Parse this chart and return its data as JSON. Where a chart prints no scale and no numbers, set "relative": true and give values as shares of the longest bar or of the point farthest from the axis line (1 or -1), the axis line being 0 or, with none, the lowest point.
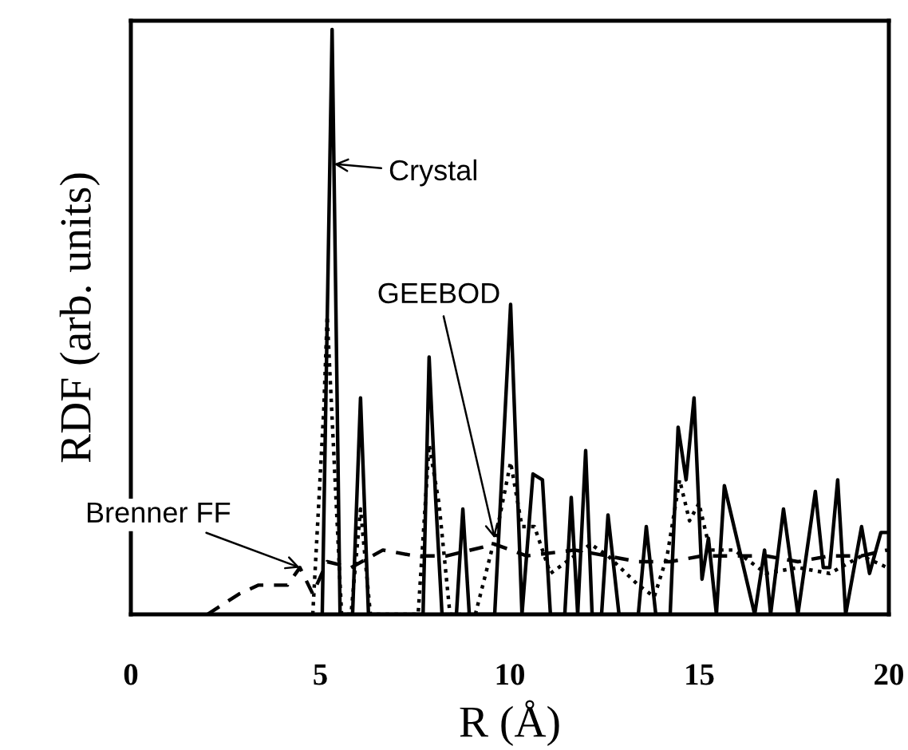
{
  "chart_data": {
    "type": "line",
    "relative": true,
    "xlabel": "R (Å)",
    "ylabel": "RDF (arb. units)",
    "xlim": [
      0,
      20
    ],
    "xticks": [
      0,
      5,
      10,
      15,
      20
    ],
    "grid": false,
    "marker": "none",
    "series": [
      {
        "color": "#000000",
        "line_style": "solid",
        "x": [
          5.05,
          5.31,
          5.52,
          5.85,
          6.06,
          6.27,
          7.71,
          7.87,
          8.04,
          8.21,
          8.59,
          8.76,
          8.93,
          9.6,
          10.02,
          10.32,
          10.61,
          10.86,
          11.07,
          11.45,
          11.62,
          11.79,
          12.0,
          12.17,
          12.42,
          12.59,
          12.88,
          13.39,
          13.6,
          13.85,
          14.23,
          14.44,
          14.65,
          14.86,
          15.07,
          15.24,
          15.45,
          15.66,
          16.46,
          16.72,
          16.88,
          17.22,
          17.6,
          18.06,
          18.27,
          18.44,
          18.65,
          18.86,
          19.28,
          19.49,
          19.79,
          19.96
        ],
        "values": [
          0,
          1.0,
          0,
          0,
          0.37,
          0,
          0,
          0.44,
          0.2,
          0,
          0,
          0.18,
          0,
          0,
          0.53,
          0,
          0.24,
          0.23,
          0,
          0,
          0.2,
          0,
          0.28,
          0,
          0,
          0.17,
          0,
          0,
          0.15,
          0,
          0,
          0.32,
          0.23,
          0.37,
          0.06,
          0.13,
          0,
          0.22,
          0,
          0.11,
          0,
          0.18,
          0,
          0.21,
          0.08,
          0.08,
          0.23,
          0,
          0.15,
          0.07,
          0.14,
          0.14
        ]
      },
      {
        "color": "#000000",
        "line_style": "dotted",
        "x": [
          4.8,
          5.09,
          5.18,
          5.56,
          5.81,
          6.06,
          6.32,
          7.58,
          7.87,
          8.13,
          8.42,
          9.09,
          9.68,
          10.02,
          10.32,
          10.65,
          11.07,
          11.71,
          12.13,
          12.59,
          13.39,
          13.81,
          14.15,
          14.48,
          14.74,
          14.99,
          15.28,
          15.92,
          16.76,
          17.6,
          18.44,
          19.28,
          19.96
        ],
        "values": [
          0,
          0.35,
          0.51,
          0,
          0,
          0.18,
          0,
          0,
          0.29,
          0.19,
          0,
          0,
          0.15,
          0.26,
          0.15,
          0.15,
          0.07,
          0.1,
          0.12,
          0.1,
          0.05,
          0.03,
          0.1,
          0.23,
          0.16,
          0.19,
          0.11,
          0.11,
          0.07,
          0.08,
          0.07,
          0.1,
          0.08
        ]
      },
      {
        "color": "#000000",
        "line_style": "dashed",
        "x": [
          2.02,
          2.86,
          3.37,
          4.13,
          4.46,
          4.8,
          5.18,
          5.81,
          6.65,
          7.49,
          8.34,
          9.6,
          10.44,
          11.71,
          12.55,
          13.39,
          14.23,
          15.07,
          15.92,
          16.76,
          17.6,
          18.44,
          19.28,
          19.96
        ],
        "values": [
          0,
          0.035,
          0.05,
          0.05,
          0.08,
          0.035,
          0.09,
          0.08,
          0.11,
          0.1,
          0.1,
          0.12,
          0.1,
          0.11,
          0.1,
          0.09,
          0.09,
          0.1,
          0.1,
          0.1,
          0.09,
          0.1,
          0.1,
          0.11
        ]
      }
    ],
    "annotations": [
      {
        "text": "Crystal",
        "x": 5.36,
        "y": 0.77
      },
      {
        "text": "GEEBOD",
        "x": 9.6,
        "y": 0.13
      },
      {
        "text": "Brenner FF",
        "x": 4.46,
        "y": 0.08
      }
    ]
  }
}
